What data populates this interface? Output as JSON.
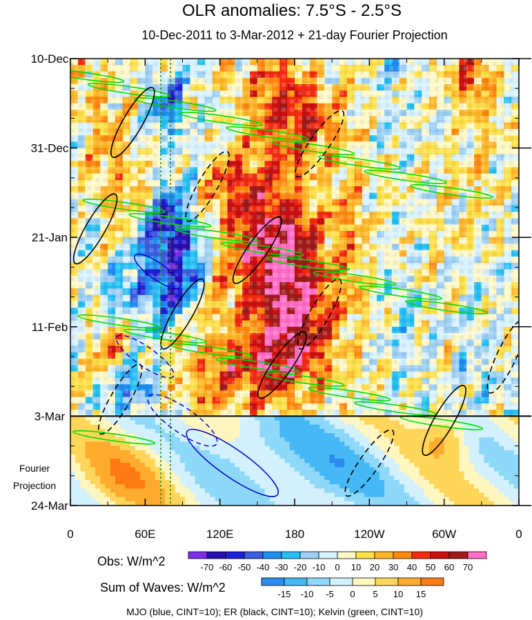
{
  "chart_data": {
    "type": "heatmap",
    "title": "OLR anomalies: 7.5°S - 2.5°S",
    "subtitle": "10-Dec-2011 to 3-Mar-2012 + 21-day Fourier Projection",
    "y_axis": {
      "ticks": [
        "10-Dec",
        "31-Dec",
        "21-Jan",
        "11-Feb",
        "3-Mar",
        "24-Mar"
      ],
      "days_from_start": [
        0,
        21,
        42,
        63,
        84,
        105
      ],
      "forecast_start_day": 84,
      "forecast_label_line1": "Fourier",
      "forecast_label_line2": "Projection"
    },
    "x_axis": {
      "ticks": [
        "0",
        "60E",
        "120E",
        "180",
        "120W",
        "60W",
        "0"
      ],
      "lon_east": [
        0,
        60,
        120,
        180,
        240,
        300,
        360
      ]
    },
    "obs_colorbar": {
      "label": "Obs: W/m^2",
      "levels": [
        "-70",
        "-60",
        "-50",
        "-40",
        "-30",
        "-20",
        "-10",
        "0",
        "10",
        "20",
        "30",
        "40",
        "50",
        "60",
        "70"
      ],
      "colors": [
        "#7b2ee6",
        "#2a0fb0",
        "#1f1fd6",
        "#3a5fe0",
        "#1e8ff0",
        "#26c0f5",
        "#9dd0f5",
        "#d8f2ff",
        "#fff8c8",
        "#ffe04a",
        "#ffb72a",
        "#ff8a10",
        "#f52a10",
        "#cc1010",
        "#a01a1a",
        "#ff6ec8"
      ]
    },
    "waves_colorbar": {
      "label": "Sum of Waves: W/m^2",
      "levels": [
        "-15",
        "-10",
        "-5",
        "0",
        "5",
        "10",
        "15"
      ],
      "colors": [
        "#2a8cf0",
        "#45b8f5",
        "#8ed8fa",
        "#d3f0ff",
        "#fff6c0",
        "#ffd65a",
        "#ffab2e",
        "#ff7a12"
      ]
    },
    "legend_caption": "MJO (blue, CINT=10); ER (black, CINT=10); Kelvin (green, CINT=10)",
    "wave_colors": {
      "mjo": "#0000cc",
      "er": "#000000",
      "kelvin": "#00dd00"
    },
    "hotspots": [
      {
        "lon": 20,
        "day": 10,
        "w": 18,
        "h": 10,
        "v": 25
      },
      {
        "lon": 40,
        "day": 28,
        "w": 22,
        "h": 10,
        "v": 30
      },
      {
        "lon": 80,
        "day": 38,
        "w": 24,
        "h": 9,
        "v": -35
      },
      {
        "lon": 85,
        "day": 48,
        "w": 22,
        "h": 12,
        "v": -45
      },
      {
        "lon": 80,
        "day": 12,
        "w": 16,
        "h": 8,
        "v": -35
      },
      {
        "lon": 60,
        "day": 55,
        "w": 30,
        "h": 8,
        "v": -25
      },
      {
        "lon": 55,
        "day": 78,
        "w": 26,
        "h": 6,
        "v": -35
      },
      {
        "lon": 95,
        "day": 78,
        "w": 30,
        "h": 8,
        "v": 25
      },
      {
        "lon": 150,
        "day": 42,
        "w": 40,
        "h": 18,
        "v": 40
      },
      {
        "lon": 175,
        "day": 48,
        "w": 30,
        "h": 16,
        "v": 45
      },
      {
        "lon": 165,
        "day": 10,
        "w": 25,
        "h": 12,
        "v": 45
      },
      {
        "lon": 195,
        "day": 15,
        "w": 20,
        "h": 10,
        "v": 35
      },
      {
        "lon": 185,
        "day": 65,
        "w": 30,
        "h": 14,
        "v": 45
      },
      {
        "lon": 155,
        "day": 73,
        "w": 30,
        "h": 10,
        "v": 40
      },
      {
        "lon": 225,
        "day": 40,
        "w": 16,
        "h": 30,
        "v": 22
      },
      {
        "lon": 120,
        "day": 68,
        "w": 30,
        "h": 10,
        "v": 20
      },
      {
        "lon": 130,
        "day": 30,
        "w": 30,
        "h": 10,
        "v": 20
      },
      {
        "lon": 30,
        "day": 70,
        "w": 20,
        "h": 10,
        "v": 20
      },
      {
        "lon": 260,
        "day": 5,
        "w": 20,
        "h": 15,
        "v": -8
      },
      {
        "lon": 300,
        "day": 45,
        "w": 25,
        "h": 30,
        "v": 8
      },
      {
        "lon": 330,
        "day": 20,
        "w": 20,
        "h": 25,
        "v": 12
      },
      {
        "lon": 325,
        "day": 65,
        "w": 20,
        "h": 25,
        "v": -10
      },
      {
        "lon": 270,
        "day": 60,
        "w": 20,
        "h": 20,
        "v": -8
      },
      {
        "lon": 320,
        "day": 3,
        "w": 18,
        "h": 8,
        "v": 35
      }
    ]
  }
}
